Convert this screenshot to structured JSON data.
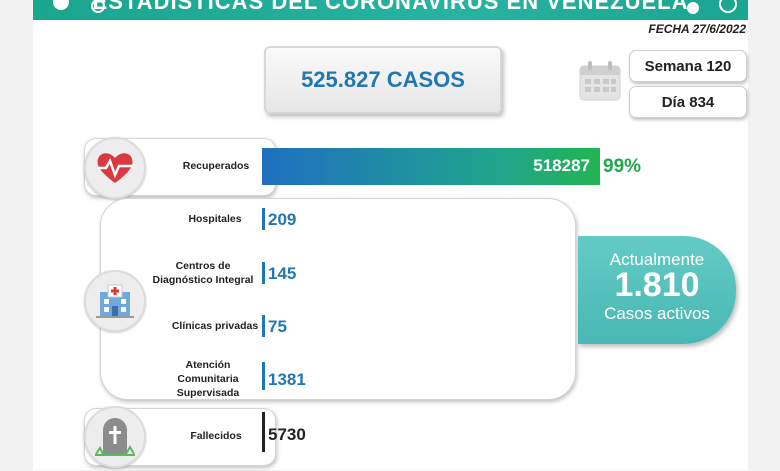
{
  "header": {
    "title": "ESTADÍSTICAS DEL CORONAVIRUS EN VENEZUELA",
    "fecha": "FECHA 27/6/2022"
  },
  "total": "525.827 CASOS",
  "semana": "Semana 120",
  "dia": "Día 834",
  "recuperados": {
    "label": "Recuperados",
    "value": "518287",
    "percent": "99%"
  },
  "atencion": [
    {
      "label": "Hospitales",
      "value": "209"
    },
    {
      "label": "Centros de Diagnóstico Integral",
      "value": "145"
    },
    {
      "label": "Clínicas privadas",
      "value": "75"
    },
    {
      "label": "Atención Comunitaria Supervisada",
      "value": "1381"
    }
  ],
  "activos": {
    "line1": "Actualmente",
    "number": "1.810",
    "line2": "Casos activos"
  },
  "fallecidos": {
    "label": "Fallecidos",
    "value": "5730"
  },
  "colors": {
    "teal": "#1aa58f",
    "blue": "#1f78b4",
    "green": "#22a84a"
  },
  "icons": [
    "virus-icon",
    "calendar-icon",
    "heart-pulse-icon",
    "hospital-icon",
    "tombstone-icon"
  ]
}
